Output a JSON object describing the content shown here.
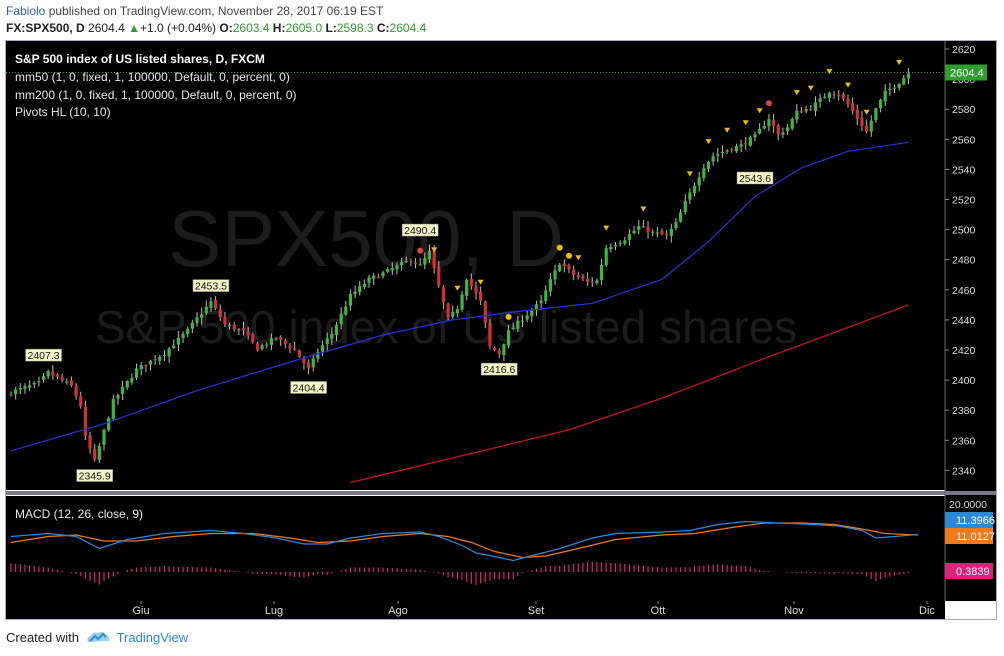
{
  "header": {
    "author": "Fabiolo",
    "published": "published on TradingView.com, November 28, 2017 06:19 EST",
    "symbol": "FX:SPX500, D",
    "last": "2604.4",
    "change": "+1.0 (+0.04%)",
    "open_label": "O:",
    "open": "2603.4",
    "high_label": "H:",
    "high": "2605.0",
    "low_label": "L:",
    "low": "2598.3",
    "close_label": "C:",
    "close": "2604.4"
  },
  "legend": {
    "title": "S&P 500 index of US listed shares, D, FXCM",
    "mm50": "mm50 (1, 0, fixed, 1, 100000, Default, 0, percent, 0)",
    "mm200": "mm200 (1, 0, fixed, 1, 100000, Default, 0, percent, 0)",
    "pivots": "Pivots HL (10, 10)"
  },
  "watermark": {
    "symbol": "SPX500, D",
    "name": "S&P 500 index of US listed shares"
  },
  "macd_legend": "MACD (12, 26, close, 9)",
  "colors": {
    "bg": "#000000",
    "up": "#3cb83c",
    "down": "#d83030",
    "mm50": "#2233dd",
    "mm200": "#dd1111",
    "macd": "#2a8ad8",
    "signal": "#f07a1a",
    "hist": "#e0207a",
    "pivot_high": "#f0c000",
    "price_badge": "#2e9e2e",
    "macd_badge": "#2a8ad8",
    "signal_badge": "#f07a1a",
    "hist_badge": "#e0207a"
  },
  "chart_data": [
    {
      "type": "candlestick",
      "title": "S&P 500 index of US listed shares, D, FXCM",
      "x_labels": [
        "Giu",
        "Lug",
        "Ago",
        "Set",
        "Ott",
        "Nov",
        "Dic"
      ],
      "y_ticks": [
        2340,
        2360,
        2380,
        2400,
        2420,
        2440,
        2460,
        2480,
        2500,
        2520,
        2540,
        2560,
        2580,
        2600,
        2620
      ],
      "ylim": [
        2330,
        2622
      ],
      "last_price_label": "2604.4",
      "close_path": [
        [
          0,
          2392
        ],
        [
          6,
          2398
        ],
        [
          8,
          2405
        ],
        [
          13,
          2396
        ],
        [
          15,
          2383
        ],
        [
          16,
          2362
        ],
        [
          18,
          2346
        ],
        [
          22,
          2386
        ],
        [
          27,
          2407
        ],
        [
          33,
          2418
        ],
        [
          38,
          2433
        ],
        [
          40,
          2441
        ],
        [
          43,
          2452
        ],
        [
          46,
          2437
        ],
        [
          50,
          2432
        ],
        [
          53,
          2421
        ],
        [
          57,
          2428
        ],
        [
          61,
          2420
        ],
        [
          64,
          2407
        ],
        [
          66,
          2419
        ],
        [
          69,
          2431
        ],
        [
          73,
          2456
        ],
        [
          77,
          2467
        ],
        [
          80,
          2471
        ],
        [
          84,
          2477
        ],
        [
          86,
          2480
        ],
        [
          88,
          2476
        ],
        [
          90,
          2485
        ],
        [
          92,
          2462
        ],
        [
          94,
          2440
        ],
        [
          96,
          2448
        ],
        [
          98,
          2468
        ],
        [
          101,
          2452
        ],
        [
          103,
          2422
        ],
        [
          105,
          2418
        ],
        [
          107,
          2432
        ],
        [
          110,
          2441
        ],
        [
          114,
          2452
        ],
        [
          116,
          2466
        ],
        [
          118,
          2478
        ],
        [
          121,
          2470
        ],
        [
          124,
          2465
        ],
        [
          126,
          2466
        ],
        [
          128,
          2488
        ],
        [
          132,
          2494
        ],
        [
          135,
          2502
        ],
        [
          138,
          2498
        ],
        [
          141,
          2496
        ],
        [
          143,
          2504
        ],
        [
          145,
          2518
        ],
        [
          147,
          2530
        ],
        [
          149,
          2542
        ],
        [
          151,
          2549
        ],
        [
          154,
          2553
        ],
        [
          157,
          2556
        ],
        [
          160,
          2562
        ],
        [
          163,
          2574
        ],
        [
          165,
          2563
        ],
        [
          167,
          2568
        ],
        [
          169,
          2578
        ],
        [
          172,
          2581
        ],
        [
          174,
          2586
        ],
        [
          176,
          2592
        ],
        [
          178,
          2590
        ],
        [
          180,
          2583
        ],
        [
          182,
          2574
        ],
        [
          184,
          2565
        ],
        [
          186,
          2580
        ],
        [
          188,
          2591
        ],
        [
          191,
          2598
        ],
        [
          193,
          2604
        ]
      ],
      "pivot_labels": [
        {
          "text": "2407.3",
          "kind": "high",
          "bar": 7,
          "price": 2407.3
        },
        {
          "text": "2345.9",
          "kind": "low",
          "bar": 18,
          "price": 2345.9
        },
        {
          "text": "2453.5",
          "kind": "high",
          "bar": 43,
          "price": 2453.5
        },
        {
          "text": "2404.4",
          "kind": "low",
          "bar": 64,
          "price": 2404.4
        },
        {
          "text": "2490.4",
          "kind": "high",
          "bar": 88,
          "price": 2490.4
        },
        {
          "text": "2416.6",
          "kind": "low",
          "bar": 105,
          "price": 2416.6
        },
        {
          "text": "2543.6",
          "kind": "low",
          "bar": 160,
          "price": 2543.6
        }
      ],
      "mm50": [
        [
          0,
          2353
        ],
        [
          20,
          2371
        ],
        [
          40,
          2393
        ],
        [
          60,
          2412
        ],
        [
          80,
          2430
        ],
        [
          95,
          2440
        ],
        [
          110,
          2446
        ],
        [
          125,
          2451
        ],
        [
          140,
          2467
        ],
        [
          150,
          2492
        ],
        [
          160,
          2522
        ],
        [
          170,
          2541
        ],
        [
          180,
          2552
        ],
        [
          193,
          2558
        ]
      ],
      "mm200": [
        [
          73,
          2332
        ],
        [
          100,
          2352
        ],
        [
          120,
          2367
        ],
        [
          140,
          2388
        ],
        [
          160,
          2412
        ],
        [
          180,
          2435
        ],
        [
          193,
          2450
        ]
      ]
    },
    {
      "type": "macd",
      "title": "MACD (12, 26, close, 9)",
      "y_tick": "20.0000",
      "values": {
        "macd": "11.3966",
        "signal": "11.0127",
        "histogram": "0.3839"
      },
      "macd_line": [
        [
          0,
          10
        ],
        [
          8,
          12
        ],
        [
          14,
          10
        ],
        [
          19,
          2
        ],
        [
          25,
          8
        ],
        [
          33,
          12
        ],
        [
          43,
          14
        ],
        [
          50,
          12
        ],
        [
          57,
          9
        ],
        [
          63,
          5
        ],
        [
          68,
          5
        ],
        [
          73,
          9
        ],
        [
          80,
          12
        ],
        [
          88,
          13
        ],
        [
          92,
          10
        ],
        [
          97,
          4
        ],
        [
          100,
          -1
        ],
        [
          105,
          -4
        ],
        [
          108,
          -6
        ],
        [
          113,
          -2
        ],
        [
          118,
          2
        ],
        [
          125,
          9
        ],
        [
          130,
          12
        ],
        [
          140,
          13
        ],
        [
          146,
          14
        ],
        [
          152,
          18
        ],
        [
          158,
          20
        ],
        [
          165,
          19
        ],
        [
          173,
          18
        ],
        [
          178,
          17
        ],
        [
          183,
          14
        ],
        [
          186,
          9
        ],
        [
          190,
          10
        ],
        [
          195,
          11.4
        ]
      ],
      "signal_line": [
        [
          0,
          6
        ],
        [
          8,
          10
        ],
        [
          14,
          11
        ],
        [
          20,
          7
        ],
        [
          27,
          7
        ],
        [
          35,
          10
        ],
        [
          43,
          12
        ],
        [
          52,
          12
        ],
        [
          60,
          9
        ],
        [
          66,
          6
        ],
        [
          73,
          7
        ],
        [
          80,
          10
        ],
        [
          88,
          12
        ],
        [
          94,
          10
        ],
        [
          99,
          6
        ],
        [
          104,
          0
        ],
        [
          110,
          -4
        ],
        [
          115,
          -3
        ],
        [
          122,
          2
        ],
        [
          130,
          8
        ],
        [
          140,
          11
        ],
        [
          147,
          12
        ],
        [
          155,
          16
        ],
        [
          162,
          19
        ],
        [
          170,
          19
        ],
        [
          177,
          18
        ],
        [
          183,
          15
        ],
        [
          188,
          12
        ],
        [
          195,
          11
        ]
      ]
    }
  ]
}
